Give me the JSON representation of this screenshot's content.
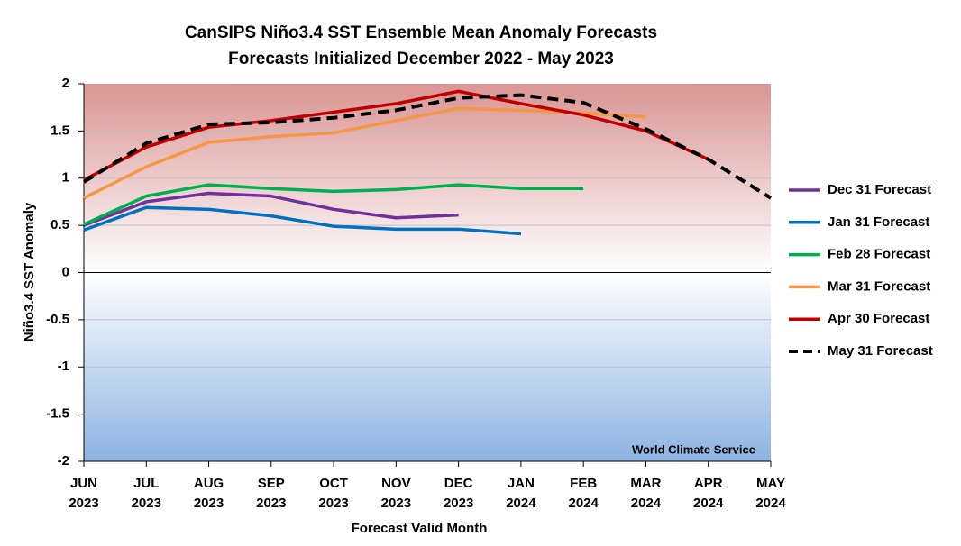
{
  "chart_data": {
    "type": "line",
    "title": "CanSIPS Niño3.4 SST Ensemble Mean Anomaly Forecasts",
    "subtitle": "Forecasts Initialized December 2022 - May 2023",
    "x_label": "Forecast Valid Month",
    "y_label": "Niño3.4 SST Anomaly",
    "annotation": "World Climate Service",
    "categories": [
      "JUN\n2023",
      "JUL\n2023",
      "AUG\n2023",
      "SEP\n2023",
      "OCT\n2023",
      "NOV\n2023",
      "DEC\n2023",
      "JAN\n2024",
      "FEB\n2024",
      "MAR\n2024",
      "APR\n2024",
      "MAY\n2024"
    ],
    "ylim": [
      -2,
      2
    ],
    "yticks": [
      2,
      1.5,
      1,
      0.5,
      0,
      -0.5,
      -1,
      -1.5,
      -2
    ],
    "grid": true,
    "legend": "right",
    "series": [
      {
        "name": "Dec 31 Forecast",
        "color": "#7030a0",
        "values": [
          0.5,
          0.75,
          0.84,
          0.81,
          0.67,
          0.58,
          0.61,
          null,
          null,
          null,
          null,
          null
        ]
      },
      {
        "name": "Jan 31 Forecast",
        "color": "#0070c0",
        "values": [
          0.45,
          0.69,
          0.67,
          0.6,
          0.49,
          0.46,
          0.46,
          0.41,
          null,
          null,
          null,
          null
        ]
      },
      {
        "name": "Feb 28 Forecast",
        "color": "#00b050",
        "values": [
          0.51,
          0.81,
          0.93,
          0.89,
          0.86,
          0.88,
          0.93,
          0.89,
          0.89,
          null,
          null,
          null
        ]
      },
      {
        "name": "Mar 31 Forecast",
        "color": "#f79646",
        "values": [
          0.79,
          1.12,
          1.38,
          1.44,
          1.48,
          1.61,
          1.74,
          1.72,
          1.69,
          1.65,
          null,
          null
        ]
      },
      {
        "name": "Apr 30 Forecast",
        "color": "#c00000",
        "values": [
          0.98,
          1.33,
          1.54,
          1.61,
          1.7,
          1.79,
          1.92,
          1.79,
          1.67,
          1.5,
          1.2,
          null
        ]
      },
      {
        "name": "May 31 Forecast",
        "color": "#000000",
        "dashed": true,
        "values": [
          0.96,
          1.37,
          1.57,
          1.59,
          1.64,
          1.72,
          1.85,
          1.88,
          1.8,
          1.52,
          1.2,
          0.79
        ]
      }
    ]
  }
}
